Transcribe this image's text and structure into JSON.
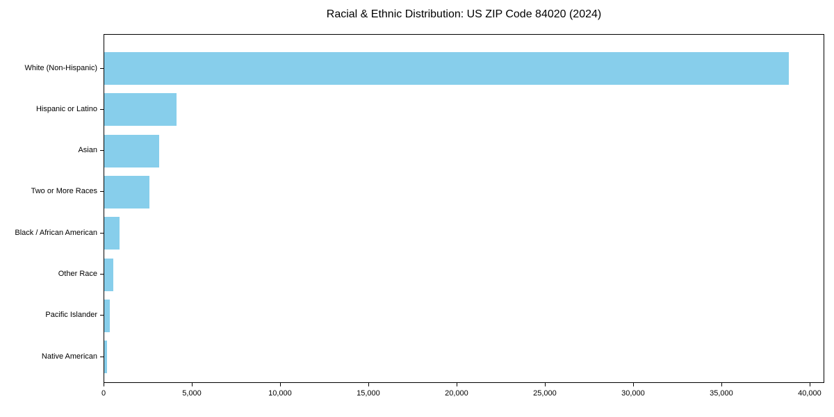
{
  "title": "Racial & Ethnic Distribution: US ZIP Code 84020 (2024)",
  "chart_data": {
    "type": "bar",
    "orientation": "horizontal",
    "title": "Racial & Ethnic Distribution: US ZIP Code 84020 (2024)",
    "categories": [
      "White (Non-Hispanic)",
      "Hispanic or Latino",
      "Asian",
      "Two or More Races",
      "Black / African American",
      "Other Race",
      "Pacific Islander",
      "Native American"
    ],
    "values": [
      38800,
      4080,
      3120,
      2570,
      880,
      510,
      300,
      170
    ],
    "xlabel": "",
    "ylabel": "",
    "xlim": [
      0,
      40830
    ],
    "xticks": [
      0,
      5000,
      10000,
      15000,
      20000,
      25000,
      30000,
      35000,
      40000
    ],
    "xtick_labels": [
      "0",
      "5,000",
      "10,000",
      "15,000",
      "20,000",
      "25,000",
      "30,000",
      "35,000",
      "40,000"
    ],
    "bar_color": "#87CEEB",
    "axis_color": "#000000",
    "background_color": "#FFFFFF",
    "grid": false,
    "legend": null
  }
}
